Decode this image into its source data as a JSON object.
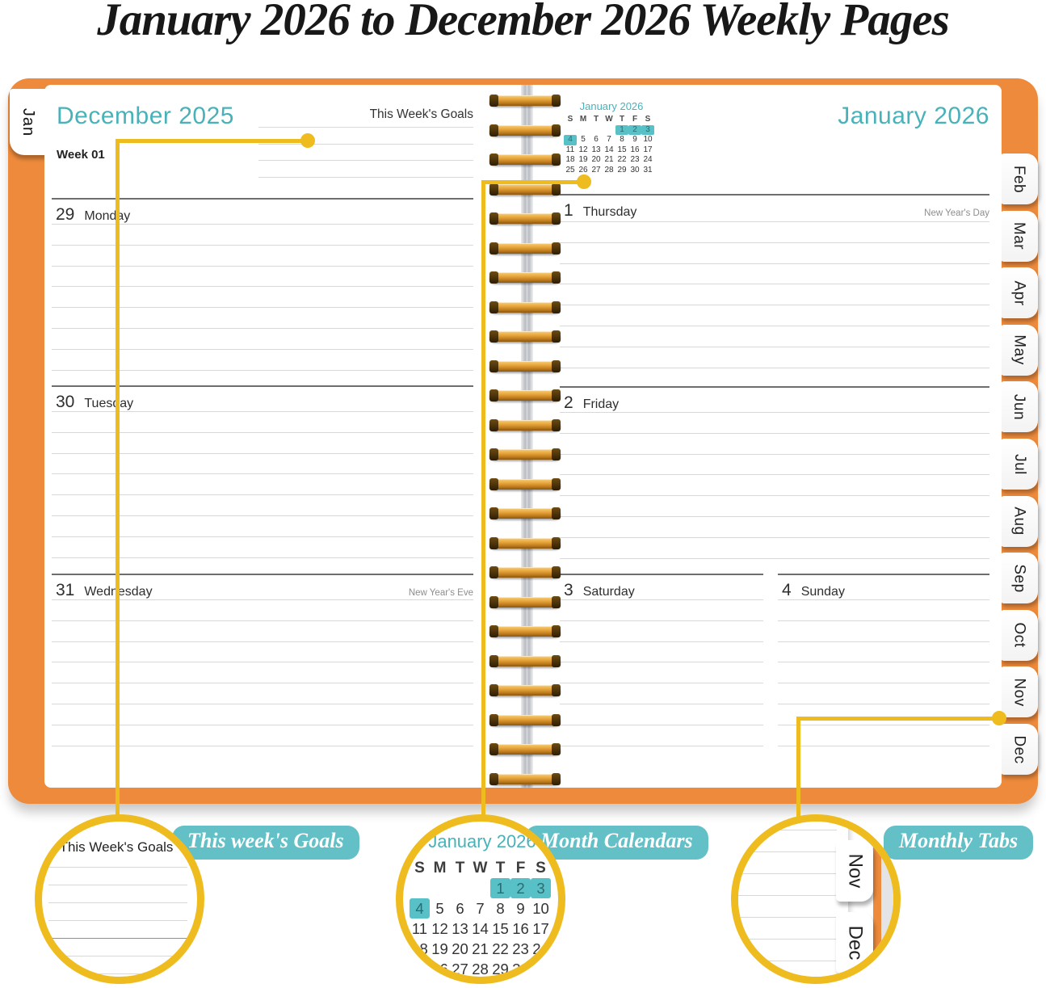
{
  "title": "January 2026 to December 2026 Weekly Pages",
  "colors": {
    "teal_text": "#49B2B9",
    "teal_label_bg": "#62C0C6",
    "calendar_highlight": "#58C0C7",
    "cover_orange": "#ED8A3C",
    "callout_yellow": "#EEBC1E"
  },
  "left_tab": {
    "label": "Jan"
  },
  "right_tabs": [
    "Feb",
    "Mar",
    "Apr",
    "May",
    "Jun",
    "Jul",
    "Aug",
    "Sep",
    "Oct",
    "Nov",
    "Dec"
  ],
  "left_page": {
    "month_title": "December 2025",
    "goals_label": "This Week's Goals",
    "week_label": "Week 01",
    "days": [
      {
        "num": "29",
        "name": "Monday",
        "note": ""
      },
      {
        "num": "30",
        "name": "Tuesday",
        "note": ""
      },
      {
        "num": "31",
        "name": "Wednesday",
        "note": "New Year's Eve"
      }
    ]
  },
  "right_page": {
    "month_title": "January 2026",
    "mini_calendar": {
      "title": "January 2026",
      "dow": [
        "S",
        "M",
        "T",
        "W",
        "T",
        "F",
        "S"
      ],
      "weeks": [
        [
          "",
          "",
          "",
          "",
          "1",
          "2",
          "3"
        ],
        [
          "4",
          "5",
          "6",
          "7",
          "8",
          "9",
          "10"
        ],
        [
          "11",
          "12",
          "13",
          "14",
          "15",
          "16",
          "17"
        ],
        [
          "18",
          "19",
          "20",
          "21",
          "22",
          "23",
          "24"
        ],
        [
          "25",
          "26",
          "27",
          "28",
          "29",
          "30",
          "31"
        ]
      ],
      "highlighted": [
        "1",
        "2",
        "3",
        "4"
      ]
    },
    "days": [
      {
        "num": "1",
        "name": "Thursday",
        "note": "New Year's Day"
      },
      {
        "num": "2",
        "name": "Friday",
        "note": ""
      },
      {
        "num": "3",
        "name": "Saturday",
        "note": ""
      },
      {
        "num": "4",
        "name": "Sunday",
        "note": ""
      }
    ]
  },
  "callouts": {
    "goals": {
      "label": "This week's Goals"
    },
    "calendar": {
      "label": "Month Calendars"
    },
    "tabs": {
      "label": "Monthly Tabs"
    }
  }
}
